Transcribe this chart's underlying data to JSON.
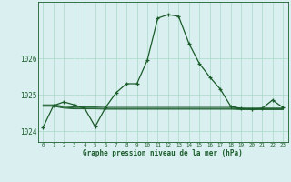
{
  "hours": [
    0,
    1,
    2,
    3,
    4,
    5,
    6,
    7,
    8,
    9,
    10,
    11,
    12,
    13,
    14,
    15,
    16,
    17,
    18,
    19,
    20,
    21,
    22,
    23
  ],
  "main_line": [
    1024.1,
    1024.7,
    1024.8,
    1024.72,
    1024.62,
    1024.12,
    1024.65,
    1025.05,
    1025.3,
    1025.3,
    1025.95,
    1027.1,
    1027.2,
    1027.15,
    1026.4,
    1025.85,
    1025.48,
    1025.15,
    1024.68,
    1024.62,
    1024.6,
    1024.62,
    1024.85,
    1024.65
  ],
  "ref_line1": [
    1024.72,
    1024.72,
    1024.68,
    1024.66,
    1024.66,
    1024.66,
    1024.65,
    1024.65,
    1024.65,
    1024.65,
    1024.65,
    1024.65,
    1024.65,
    1024.65,
    1024.65,
    1024.65,
    1024.65,
    1024.65,
    1024.65,
    1024.63,
    1024.63,
    1024.63,
    1024.63,
    1024.63
  ],
  "ref_line2": [
    1024.7,
    1024.7,
    1024.65,
    1024.63,
    1024.63,
    1024.63,
    1024.62,
    1024.62,
    1024.62,
    1024.62,
    1024.62,
    1024.62,
    1024.62,
    1024.62,
    1024.62,
    1024.62,
    1024.62,
    1024.62,
    1024.62,
    1024.61,
    1024.61,
    1024.61,
    1024.61,
    1024.61
  ],
  "ref_line3": [
    1024.68,
    1024.68,
    1024.63,
    1024.61,
    1024.61,
    1024.61,
    1024.6,
    1024.6,
    1024.6,
    1024.6,
    1024.6,
    1024.6,
    1024.6,
    1024.6,
    1024.6,
    1024.6,
    1024.6,
    1024.6,
    1024.6,
    1024.59,
    1024.59,
    1024.59,
    1024.59,
    1024.59
  ],
  "bg_color": "#daf0f0",
  "grid_color": "#a8d8c8",
  "line_color": "#1a5c2a",
  "ylabel_ticks": [
    1024,
    1025,
    1026
  ],
  "xlabel": "Graphe pression niveau de la mer (hPa)",
  "ylim_min": 1023.7,
  "ylim_max": 1027.55,
  "xlim_min": -0.5,
  "xlim_max": 23.5
}
